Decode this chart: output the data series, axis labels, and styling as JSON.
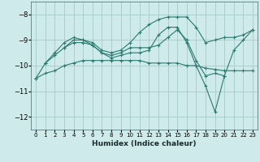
{
  "xlabel": "Humidex (Indice chaleur)",
  "bg_color": "#ceeaea",
  "grid_color": "#aacece",
  "line_color": "#2a7a70",
  "xlim": [
    -0.5,
    23.5
  ],
  "ylim": [
    -12.5,
    -7.5
  ],
  "yticks": [
    -12,
    -11,
    -10,
    -9,
    -8
  ],
  "xticks": [
    0,
    1,
    2,
    3,
    4,
    5,
    6,
    7,
    8,
    9,
    10,
    11,
    12,
    13,
    14,
    15,
    16,
    17,
    18,
    19,
    20,
    21,
    22,
    23
  ],
  "curves": [
    {
      "x": [
        1,
        2,
        3,
        4,
        5,
        6,
        7,
        8,
        9,
        10,
        11,
        12,
        13,
        14,
        15,
        16,
        17,
        18,
        19,
        20,
        21,
        22,
        23
      ],
      "y": [
        -9.9,
        -9.5,
        -9.1,
        -8.9,
        -9.0,
        -9.1,
        -9.4,
        -9.5,
        -9.4,
        -9.1,
        -8.7,
        -8.4,
        -8.2,
        -8.1,
        -8.1,
        -8.1,
        -8.5,
        -9.1,
        -9.0,
        -8.9,
        -8.9,
        -8.8,
        -8.6
      ]
    },
    {
      "x": [
        0,
        1,
        2,
        3,
        4,
        5,
        6,
        7,
        8,
        9,
        10,
        11,
        12,
        13,
        14,
        15,
        16,
        17,
        18,
        19,
        20,
        21,
        22,
        23
      ],
      "y": [
        -10.5,
        -9.9,
        -9.6,
        -9.3,
        -9.1,
        -9.1,
        -9.2,
        -9.5,
        -9.7,
        -9.6,
        -9.5,
        -9.5,
        -9.4,
        -8.8,
        -8.5,
        -8.5,
        -9.1,
        -10.0,
        -10.8,
        -11.8,
        -10.4,
        -9.4,
        -9.0,
        -8.6
      ]
    },
    {
      "x": [
        0,
        1,
        2,
        3,
        4,
        5,
        6,
        7,
        8,
        9,
        10,
        11,
        12,
        13,
        14,
        15,
        16,
        17,
        18,
        19,
        20,
        21,
        22,
        23
      ],
      "y": [
        -10.5,
        -10.3,
        -10.2,
        -10.0,
        -9.9,
        -9.8,
        -9.8,
        -9.8,
        -9.8,
        -9.8,
        -9.8,
        -9.8,
        -9.9,
        -9.9,
        -9.9,
        -9.9,
        -10.0,
        -10.0,
        -10.1,
        -10.15,
        -10.2,
        -10.2,
        -10.2,
        -10.2
      ]
    },
    {
      "x": [
        3,
        4,
        5,
        6,
        7,
        8,
        9,
        10,
        11,
        12,
        13,
        14,
        15,
        16,
        17,
        18,
        19,
        20
      ],
      "y": [
        -9.3,
        -9.0,
        -9.0,
        -9.2,
        -9.5,
        -9.6,
        -9.5,
        -9.3,
        -9.3,
        -9.3,
        -9.2,
        -8.9,
        -8.6,
        -9.0,
        -9.8,
        -10.4,
        -10.3,
        -10.4
      ]
    }
  ]
}
